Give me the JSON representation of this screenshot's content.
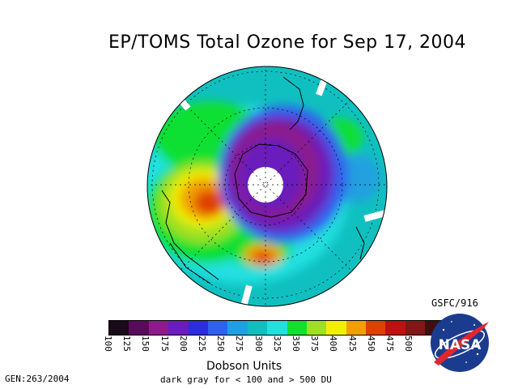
{
  "title": "EP/TOMS Total Ozone for Sep 17, 2004",
  "colorbar": {
    "colors": [
      "#1a0a1a",
      "#5a0a5a",
      "#8c1c8c",
      "#6a1cbc",
      "#2c2ce0",
      "#3060f0",
      "#20a0e0",
      "#10c0c0",
      "#20e0e0",
      "#10e030",
      "#a0e020",
      "#f0f000",
      "#f0a000",
      "#e04000",
      "#c01010",
      "#801818",
      "#401010"
    ],
    "tick_labels": [
      "100",
      "125",
      "150",
      "175",
      "200",
      "225",
      "250",
      "275",
      "300",
      "325",
      "350",
      "375",
      "400",
      "425",
      "450",
      "475",
      "500"
    ]
  },
  "units_label": "Dobson Units",
  "range_note": "dark gray for < 100 and > 500 DU",
  "gen_label": "GEN:263/2004",
  "gsfc_label": "GSFC/916",
  "logo_text": "NASA"
}
